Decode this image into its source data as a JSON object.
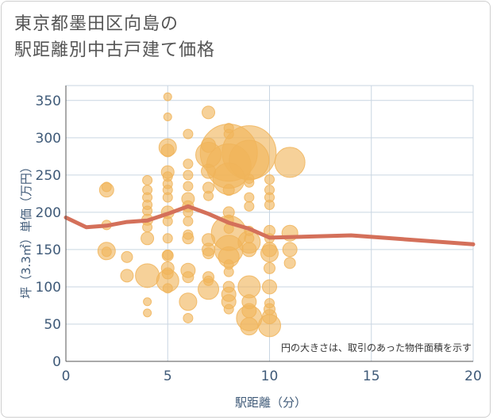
{
  "title_line1": "東京都墨田区向島の",
  "title_line2": "駅距離別中古戸建て価格",
  "chart_data": {
    "type": "scatter",
    "title": "東京都墨田区向島の駅距離別中古戸建て価格",
    "xlabel": "駅距離（分）",
    "ylabel": "坪（3.3㎡）単価（万円）",
    "xlim": [
      0,
      20
    ],
    "ylim": [
      0,
      370
    ],
    "xticks": [
      0,
      5,
      10,
      15,
      20
    ],
    "yticks": [
      0,
      50,
      100,
      150,
      200,
      250,
      300,
      350
    ],
    "grid": true,
    "annotation": "円の大きさは、取引のあった物件面積を示す",
    "colors": {
      "bubble": "#f0b45a",
      "line": "#d4705a",
      "axis": "#3f5a78",
      "grid": "#c9d6e2"
    },
    "trend_line": {
      "x": [
        0,
        1,
        2,
        3,
        4,
        5,
        6,
        7,
        8,
        9,
        10,
        14,
        20
      ],
      "y": [
        193,
        180,
        182,
        187,
        189,
        198,
        208,
        198,
        186,
        178,
        166,
        169,
        157
      ]
    },
    "bubbles": [
      {
        "x": 2,
        "y": 230,
        "s": 9
      },
      {
        "x": 2,
        "y": 234,
        "s": 6
      },
      {
        "x": 2,
        "y": 183,
        "s": 6
      },
      {
        "x": 2,
        "y": 148,
        "s": 11
      },
      {
        "x": 2,
        "y": 147,
        "s": 6
      },
      {
        "x": 3,
        "y": 140,
        "s": 7
      },
      {
        "x": 3,
        "y": 115,
        "s": 8
      },
      {
        "x": 4,
        "y": 243,
        "s": 6
      },
      {
        "x": 4,
        "y": 230,
        "s": 6
      },
      {
        "x": 4,
        "y": 220,
        "s": 6
      },
      {
        "x": 4,
        "y": 210,
        "s": 6
      },
      {
        "x": 4,
        "y": 202,
        "s": 6
      },
      {
        "x": 4,
        "y": 190,
        "s": 7
      },
      {
        "x": 4,
        "y": 180,
        "s": 6
      },
      {
        "x": 4,
        "y": 165,
        "s": 8
      },
      {
        "x": 4,
        "y": 115,
        "s": 15
      },
      {
        "x": 4,
        "y": 80,
        "s": 5
      },
      {
        "x": 4,
        "y": 65,
        "s": 5
      },
      {
        "x": 5,
        "y": 355,
        "s": 5
      },
      {
        "x": 5,
        "y": 328,
        "s": 5
      },
      {
        "x": 5,
        "y": 287,
        "s": 11
      },
      {
        "x": 5,
        "y": 283,
        "s": 8
      },
      {
        "x": 5,
        "y": 254,
        "s": 8
      },
      {
        "x": 5,
        "y": 248,
        "s": 6
      },
      {
        "x": 5,
        "y": 238,
        "s": 6
      },
      {
        "x": 5,
        "y": 230,
        "s": 6
      },
      {
        "x": 5,
        "y": 220,
        "s": 6
      },
      {
        "x": 5,
        "y": 200,
        "s": 8
      },
      {
        "x": 5,
        "y": 188,
        "s": 6
      },
      {
        "x": 5,
        "y": 165,
        "s": 6
      },
      {
        "x": 5,
        "y": 143,
        "s": 6
      },
      {
        "x": 5,
        "y": 142,
        "s": 7
      },
      {
        "x": 5,
        "y": 125,
        "s": 8
      },
      {
        "x": 5,
        "y": 118,
        "s": 7
      },
      {
        "x": 5,
        "y": 108,
        "s": 14
      },
      {
        "x": 5,
        "y": 98,
        "s": 6
      },
      {
        "x": 6,
        "y": 305,
        "s": 6
      },
      {
        "x": 6,
        "y": 265,
        "s": 6
      },
      {
        "x": 6,
        "y": 250,
        "s": 6
      },
      {
        "x": 6,
        "y": 235,
        "s": 6
      },
      {
        "x": 6,
        "y": 218,
        "s": 8
      },
      {
        "x": 6,
        "y": 208,
        "s": 7
      },
      {
        "x": 6,
        "y": 200,
        "s": 6
      },
      {
        "x": 6,
        "y": 188,
        "s": 6
      },
      {
        "x": 6,
        "y": 170,
        "s": 6
      },
      {
        "x": 6,
        "y": 165,
        "s": 7
      },
      {
        "x": 6,
        "y": 122,
        "s": 9
      },
      {
        "x": 6,
        "y": 113,
        "s": 7
      },
      {
        "x": 6,
        "y": 80,
        "s": 11
      },
      {
        "x": 6,
        "y": 58,
        "s": 6
      },
      {
        "x": 7,
        "y": 334,
        "s": 8
      },
      {
        "x": 7,
        "y": 290,
        "s": 9
      },
      {
        "x": 7,
        "y": 277,
        "s": 16
      },
      {
        "x": 7,
        "y": 255,
        "s": 9
      },
      {
        "x": 7,
        "y": 233,
        "s": 7
      },
      {
        "x": 7,
        "y": 222,
        "s": 6
      },
      {
        "x": 7,
        "y": 163,
        "s": 8
      },
      {
        "x": 7,
        "y": 150,
        "s": 8
      },
      {
        "x": 7,
        "y": 145,
        "s": 7
      },
      {
        "x": 7,
        "y": 113,
        "s": 7
      },
      {
        "x": 7,
        "y": 108,
        "s": 6
      },
      {
        "x": 7,
        "y": 97,
        "s": 13
      },
      {
        "x": 8,
        "y": 313,
        "s": 6
      },
      {
        "x": 8,
        "y": 305,
        "s": 6
      },
      {
        "x": 8,
        "y": 280,
        "s": 36
      },
      {
        "x": 8,
        "y": 262,
        "s": 28
      },
      {
        "x": 8,
        "y": 245,
        "s": 20
      },
      {
        "x": 8,
        "y": 230,
        "s": 7
      },
      {
        "x": 8,
        "y": 200,
        "s": 7
      },
      {
        "x": 8,
        "y": 190,
        "s": 6
      },
      {
        "x": 8,
        "y": 178,
        "s": 6
      },
      {
        "x": 8,
        "y": 172,
        "s": 22
      },
      {
        "x": 8,
        "y": 150,
        "s": 18
      },
      {
        "x": 8,
        "y": 140,
        "s": 13
      },
      {
        "x": 8,
        "y": 130,
        "s": 6
      },
      {
        "x": 8,
        "y": 120,
        "s": 6
      },
      {
        "x": 8,
        "y": 100,
        "s": 7
      },
      {
        "x": 8,
        "y": 90,
        "s": 9
      },
      {
        "x": 8,
        "y": 80,
        "s": 9
      },
      {
        "x": 8,
        "y": 70,
        "s": 6
      },
      {
        "x": 9,
        "y": 280,
        "s": 34
      },
      {
        "x": 9,
        "y": 270,
        "s": 25
      },
      {
        "x": 9,
        "y": 245,
        "s": 6
      },
      {
        "x": 9,
        "y": 240,
        "s": 6
      },
      {
        "x": 9,
        "y": 220,
        "s": 6
      },
      {
        "x": 9,
        "y": 208,
        "s": 6
      },
      {
        "x": 9,
        "y": 175,
        "s": 6
      },
      {
        "x": 9,
        "y": 165,
        "s": 6
      },
      {
        "x": 9,
        "y": 160,
        "s": 14
      },
      {
        "x": 9,
        "y": 150,
        "s": 9
      },
      {
        "x": 9,
        "y": 100,
        "s": 14
      },
      {
        "x": 9,
        "y": 80,
        "s": 9
      },
      {
        "x": 9,
        "y": 68,
        "s": 9
      },
      {
        "x": 9,
        "y": 58,
        "s": 16
      },
      {
        "x": 9,
        "y": 47,
        "s": 11
      },
      {
        "x": 10,
        "y": 244,
        "s": 6
      },
      {
        "x": 10,
        "y": 230,
        "s": 6
      },
      {
        "x": 10,
        "y": 220,
        "s": 6
      },
      {
        "x": 10,
        "y": 210,
        "s": 6
      },
      {
        "x": 10,
        "y": 175,
        "s": 7
      },
      {
        "x": 10,
        "y": 165,
        "s": 6
      },
      {
        "x": 10,
        "y": 150,
        "s": 9
      },
      {
        "x": 10,
        "y": 145,
        "s": 11
      },
      {
        "x": 10,
        "y": 125,
        "s": 7
      },
      {
        "x": 10,
        "y": 100,
        "s": 9
      },
      {
        "x": 10,
        "y": 78,
        "s": 6
      },
      {
        "x": 10,
        "y": 70,
        "s": 7
      },
      {
        "x": 10,
        "y": 60,
        "s": 9
      },
      {
        "x": 10,
        "y": 48,
        "s": 14
      },
      {
        "x": 11,
        "y": 267,
        "s": 19
      },
      {
        "x": 11,
        "y": 172,
        "s": 10
      },
      {
        "x": 11,
        "y": 150,
        "s": 9
      },
      {
        "x": 11,
        "y": 132,
        "s": 7
      }
    ]
  }
}
